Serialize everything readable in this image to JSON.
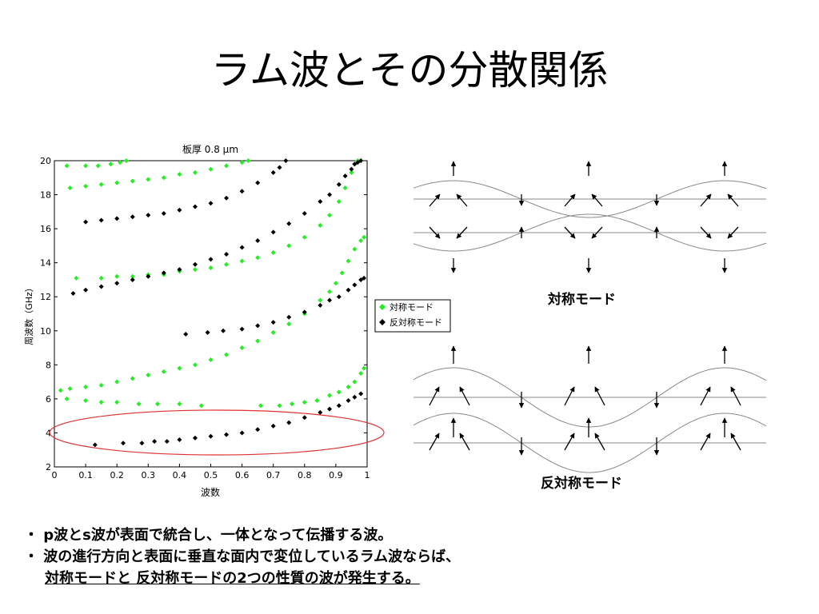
{
  "slide": {
    "title": "ラム波とその分散関係"
  },
  "chart_data": {
    "type": "scatter",
    "title": "板厚 0.8 µm",
    "xlabel": "波数",
    "ylabel": "周波数（GHz）",
    "xlim": [
      0,
      1
    ],
    "ylim": [
      2,
      20
    ],
    "xticks": [
      "0",
      "0.1",
      "0.2",
      "0.3",
      "0.4",
      "0.5",
      "0.6",
      "0.7",
      "0.8",
      "0.9",
      "1"
    ],
    "yticks": [
      "2",
      "4",
      "6",
      "8",
      "10",
      "12",
      "14",
      "16",
      "18",
      "20"
    ],
    "legend_position": "right",
    "grid": false,
    "series": [
      {
        "name": "対称モード",
        "color": "#22ee22",
        "marker": "diamond",
        "curves": [
          {
            "x": [
              0.04,
              0.1,
              0.14,
              0.18,
              0.21,
              0.23
            ],
            "y": [
              19.7,
              19.7,
              19.7,
              19.8,
              19.9,
              20.0
            ]
          },
          {
            "x": [
              0.05,
              0.1,
              0.15,
              0.2,
              0.25,
              0.3,
              0.35,
              0.4,
              0.45,
              0.5,
              0.55,
              0.6,
              0.62
            ],
            "y": [
              18.4,
              18.5,
              18.6,
              18.7,
              18.8,
              18.9,
              19.0,
              19.2,
              19.3,
              19.5,
              19.7,
              19.9,
              20.0
            ]
          },
          {
            "x": [
              0.07,
              0.15,
              0.2,
              0.25,
              0.3,
              0.35,
              0.4,
              0.45,
              0.5,
              0.55,
              0.6,
              0.65,
              0.7,
              0.75,
              0.8,
              0.85,
              0.88,
              0.91,
              0.93,
              0.95,
              0.96,
              0.97,
              0.98
            ],
            "y": [
              13.1,
              13.1,
              13.2,
              13.2,
              13.3,
              13.3,
              13.5,
              13.6,
              13.7,
              13.9,
              14.1,
              14.3,
              14.6,
              15.0,
              15.5,
              16.2,
              16.8,
              17.6,
              18.4,
              19.3,
              19.8,
              20.0,
              20.0
            ]
          },
          {
            "x": [
              0.02,
              0.05,
              0.1,
              0.15,
              0.2,
              0.25,
              0.3,
              0.35,
              0.4,
              0.45,
              0.5,
              0.55,
              0.6,
              0.65,
              0.7,
              0.75,
              0.8,
              0.85,
              0.88,
              0.9,
              0.92,
              0.94,
              0.96,
              0.98,
              0.99
            ],
            "y": [
              6.5,
              6.6,
              6.7,
              6.8,
              7.0,
              7.2,
              7.4,
              7.6,
              7.8,
              8.0,
              8.3,
              8.6,
              9.0,
              9.4,
              9.9,
              10.4,
              11.0,
              11.8,
              12.3,
              12.8,
              13.4,
              14.1,
              14.8,
              15.3,
              15.5
            ]
          },
          {
            "x": [
              0.04,
              0.1,
              0.15,
              0.2,
              0.27,
              0.33,
              0.4,
              0.47,
              0.66,
              0.72,
              0.76,
              0.8,
              0.84,
              0.88,
              0.91,
              0.94,
              0.96,
              0.98,
              0.99
            ],
            "y": [
              6.0,
              5.9,
              5.8,
              5.8,
              5.7,
              5.7,
              5.7,
              5.6,
              5.6,
              5.6,
              5.7,
              5.8,
              5.9,
              6.2,
              6.4,
              6.7,
              7.0,
              7.5,
              7.8
            ]
          }
        ]
      },
      {
        "name": "反対称モード",
        "color": "#000000",
        "marker": "diamond",
        "curves": [
          {
            "x": [
              0.1,
              0.15,
              0.2,
              0.25,
              0.3,
              0.35,
              0.4,
              0.45,
              0.5,
              0.55,
              0.6,
              0.65,
              0.7,
              0.72,
              0.74
            ],
            "y": [
              16.4,
              16.5,
              16.6,
              16.7,
              16.8,
              16.9,
              17.1,
              17.3,
              17.5,
              17.8,
              18.2,
              18.7,
              19.3,
              19.6,
              20.0
            ]
          },
          {
            "x": [
              0.06,
              0.1,
              0.15,
              0.2,
              0.25,
              0.3,
              0.35,
              0.4,
              0.45,
              0.5,
              0.55,
              0.6,
              0.65,
              0.7,
              0.75,
              0.8,
              0.85,
              0.88,
              0.91,
              0.93,
              0.95,
              0.96,
              0.97,
              0.98
            ],
            "y": [
              12.2,
              12.4,
              12.6,
              12.8,
              13.0,
              13.2,
              13.4,
              13.6,
              13.9,
              14.2,
              14.5,
              14.9,
              15.3,
              15.8,
              16.3,
              16.9,
              17.6,
              18.0,
              18.6,
              19.1,
              19.5,
              19.8,
              19.9,
              20.0
            ]
          },
          {
            "x": [
              0.42,
              0.49,
              0.54,
              0.6,
              0.65,
              0.7,
              0.75,
              0.8,
              0.85,
              0.88,
              0.91,
              0.94,
              0.96,
              0.98,
              0.99
            ],
            "y": [
              9.8,
              9.9,
              10.0,
              10.1,
              10.3,
              10.5,
              10.8,
              11.1,
              11.5,
              11.8,
              12.0,
              12.4,
              12.7,
              13.0,
              13.1
            ]
          },
          {
            "x": [
              0.13,
              0.22,
              0.28,
              0.32,
              0.36,
              0.4,
              0.45,
              0.5,
              0.55,
              0.6,
              0.65,
              0.7,
              0.75,
              0.8,
              0.85,
              0.88,
              0.91,
              0.94,
              0.96,
              0.98
            ],
            "y": [
              3.3,
              3.4,
              3.4,
              3.5,
              3.5,
              3.6,
              3.7,
              3.8,
              3.9,
              4.0,
              4.2,
              4.4,
              4.6,
              4.9,
              5.2,
              5.4,
              5.6,
              5.9,
              6.1,
              6.3
            ]
          }
        ]
      }
    ],
    "highlight": {
      "shape": "ellipse",
      "color": "#e03030"
    }
  },
  "modes": {
    "symmetric_label": "対称モード",
    "antisymmetric_label": "反対称モード"
  },
  "bullets": [
    "・ p波とs波が表面で統合し、一体となって伝播する波。",
    "・ 波の進行方向と表面に垂直な面内で変位しているラム波ならば、"
  ],
  "underlined": "対称モードと 反対称モードの2つの性質の波が発生する。"
}
